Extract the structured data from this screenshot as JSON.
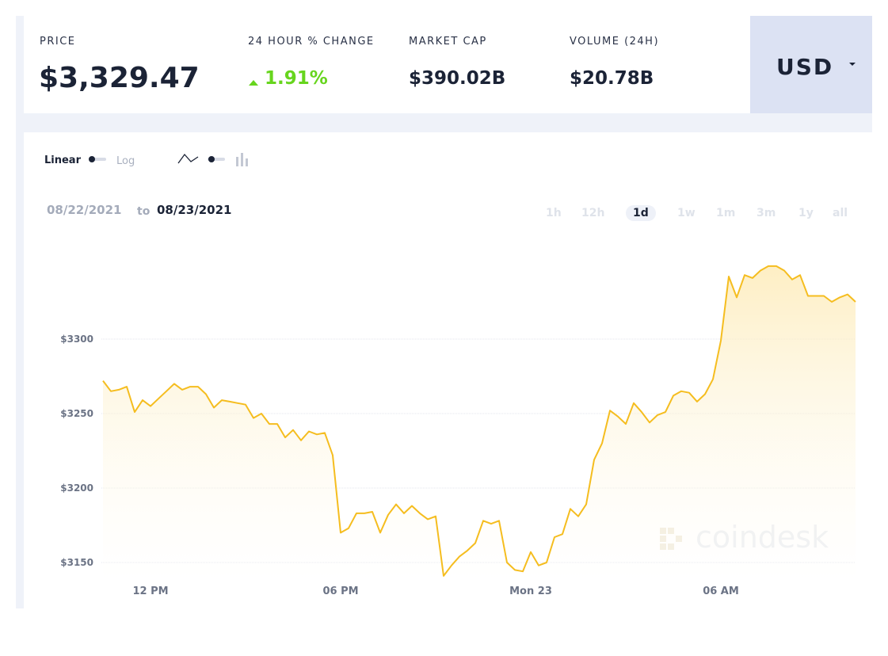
{
  "stats": [
    {
      "label": "PRICE",
      "value": "$3,329.47"
    },
    {
      "label": "24 HOUR % CHANGE",
      "value": "1.91%"
    },
    {
      "label": "MARKET CAP",
      "value": "$390.02B"
    },
    {
      "label": "VOLUME (24H)",
      "value": "$20.78B"
    }
  ],
  "currency": "USD",
  "scale_toggle": {
    "left": "Linear",
    "right": "Log"
  },
  "date_range": {
    "from": "08/22/2021",
    "joiner": "to",
    "to": "08/23/2021"
  },
  "timeframes": [
    "1h",
    "12h",
    "1d",
    "1w",
    "1m",
    "3m",
    "1y",
    "all"
  ],
  "active_timeframe": "1d",
  "watermark": "coindesk",
  "chart_data": {
    "type": "line",
    "color": "#f5bd1f",
    "fill": true,
    "grid": true,
    "categories": [
      null,
      null,
      null,
      null,
      null,
      null,
      "12 PM",
      null,
      null,
      null,
      null,
      null,
      null,
      null,
      null,
      null,
      null,
      null,
      null,
      null,
      null,
      null,
      null,
      null,
      null,
      null,
      null,
      null,
      null,
      null,
      "06 PM",
      null,
      null,
      null,
      null,
      null,
      null,
      null,
      null,
      null,
      null,
      null,
      null,
      null,
      null,
      null,
      null,
      null,
      null,
      null,
      null,
      null,
      null,
      null,
      "Mon 23",
      null,
      null,
      null,
      null,
      null,
      null,
      null,
      null,
      null,
      null,
      null,
      null,
      null,
      null,
      null,
      null,
      null,
      null,
      null,
      null,
      null,
      null,
      null,
      "06 AM",
      null,
      null,
      null,
      null,
      null,
      null,
      null,
      null,
      null,
      null,
      null,
      null,
      null,
      null,
      null,
      null,
      null
    ],
    "values": [
      3272,
      3265,
      3266,
      3268,
      3251,
      3259,
      3255,
      3260,
      3265,
      3270,
      3266,
      3268,
      3268,
      3263,
      3254,
      3259,
      3258,
      3257,
      3256,
      3247,
      3250,
      3243,
      3243,
      3234,
      3239,
      3232,
      3238,
      3236,
      3237,
      3222,
      3170,
      3173,
      3183,
      3183,
      3184,
      3170,
      3182,
      3189,
      3183,
      3188,
      3183,
      3179,
      3181,
      3141,
      3148,
      3154,
      3158,
      3163,
      3178,
      3176,
      3178,
      3150,
      3145,
      3144,
      3157,
      3148,
      3150,
      3167,
      3169,
      3186,
      3181,
      3189,
      3219,
      3230,
      3252,
      3248,
      3243,
      3257,
      3251,
      3244,
      3249,
      3251,
      3262,
      3265,
      3264,
      3258,
      3263,
      3273,
      3299,
      3342,
      3328,
      3343,
      3341,
      3346,
      3349,
      3349,
      3346,
      3340,
      3343,
      3329,
      3329,
      3329,
      3325,
      3328,
      3330,
      3325
    ],
    "ylim": [
      3137,
      3360
    ],
    "yticks": [
      {
        "value": 3150,
        "label": "$3150"
      },
      {
        "value": 3200,
        "label": "$3200"
      },
      {
        "value": 3250,
        "label": "$3250"
      },
      {
        "value": 3300,
        "label": "$3300"
      }
    ]
  }
}
